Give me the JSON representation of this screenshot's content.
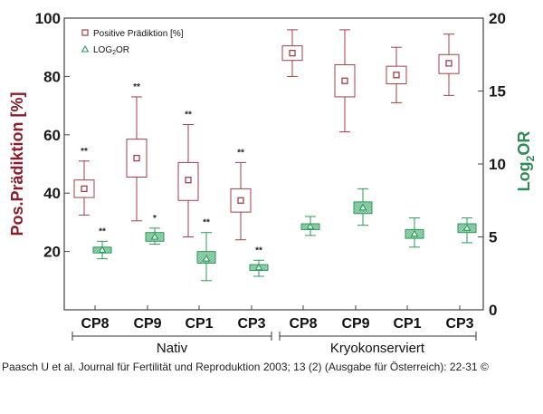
{
  "chart_data": {
    "type": "boxplot",
    "groups": [
      {
        "name": "Nativ",
        "categories": [
          "CP8",
          "CP9",
          "CP1",
          "CP3"
        ]
      },
      {
        "name": "Kryokonserviert",
        "categories": [
          "CP8",
          "CP9",
          "CP1",
          "CP3"
        ]
      }
    ],
    "y_left": {
      "label_main": "Pos.Prädiktion [%]",
      "ylim": [
        0,
        100
      ],
      "ticks": [
        20,
        40,
        60,
        80,
        100
      ]
    },
    "y_right": {
      "label_prefix": "Log",
      "label_sub": "2",
      "label_suffix": "OR",
      "ylim": [
        0,
        20
      ],
      "ticks": [
        0,
        5,
        10,
        15,
        20
      ]
    },
    "series": [
      {
        "name": "Positive Prädiktion [%]",
        "axis": "left",
        "color": "#a0404a",
        "marker": "square",
        "boxes": [
          {
            "category": "CP8",
            "group": "Nativ",
            "min": 32.5,
            "q1": 38.5,
            "median": 41.5,
            "q3": 44.5,
            "max": 51.0,
            "annotation": "**"
          },
          {
            "category": "CP9",
            "group": "Nativ",
            "min": 30.5,
            "q1": 45.5,
            "median": 52.0,
            "q3": 58.5,
            "max": 73.0,
            "annotation": "**"
          },
          {
            "category": "CP1",
            "group": "Nativ",
            "min": 25.0,
            "q1": 37.5,
            "median": 44.5,
            "q3": 50.5,
            "max": 63.5,
            "annotation": "**"
          },
          {
            "category": "CP3",
            "group": "Nativ",
            "min": 24.0,
            "q1": 33.5,
            "median": 37.5,
            "q3": 41.5,
            "max": 50.5,
            "annotation": "**"
          },
          {
            "category": "CP8",
            "group": "Kryokonserviert",
            "min": 80.0,
            "q1": 85.5,
            "median": 88.0,
            "q3": 90.5,
            "max": 96.0,
            "annotation": ""
          },
          {
            "category": "CP9",
            "group": "Kryokonserviert",
            "min": 61.0,
            "q1": 73.0,
            "median": 78.5,
            "q3": 84.0,
            "max": 96.0,
            "annotation": ""
          },
          {
            "category": "CP1",
            "group": "Kryokonserviert",
            "min": 71.0,
            "q1": 77.5,
            "median": 80.5,
            "q3": 83.5,
            "max": 90.0,
            "annotation": ""
          },
          {
            "category": "CP3",
            "group": "Kryokonserviert",
            "min": 73.5,
            "q1": 81.0,
            "median": 84.5,
            "q3": 87.5,
            "max": 94.5,
            "annotation": ""
          }
        ]
      },
      {
        "name": "LOG2OR",
        "legend_prefix": "LOG",
        "legend_sub": "2",
        "legend_suffix": "OR",
        "axis": "right",
        "color": "#2e9a5e",
        "marker": "triangle",
        "boxes": [
          {
            "category": "CP8",
            "group": "Nativ",
            "min": 3.5,
            "q1": 3.9,
            "median": 4.1,
            "q3": 4.3,
            "max": 4.7,
            "annotation": "**"
          },
          {
            "category": "CP9",
            "group": "Nativ",
            "min": 4.5,
            "q1": 4.7,
            "median": 5.0,
            "q3": 5.3,
            "max": 5.6,
            "annotation": "*"
          },
          {
            "category": "CP1",
            "group": "Nativ",
            "min": 2.0,
            "q1": 3.2,
            "median": 3.5,
            "q3": 4.0,
            "max": 5.3,
            "annotation": "**"
          },
          {
            "category": "CP3",
            "group": "Nativ",
            "min": 2.3,
            "q1": 2.7,
            "median": 2.9,
            "q3": 3.1,
            "max": 3.4,
            "annotation": "**"
          },
          {
            "category": "CP8",
            "group": "Kryokonserviert",
            "min": 5.1,
            "q1": 5.5,
            "median": 5.7,
            "q3": 5.9,
            "max": 6.4,
            "annotation": ""
          },
          {
            "category": "CP9",
            "group": "Kryokonserviert",
            "min": 5.8,
            "q1": 6.6,
            "median": 7.0,
            "q3": 7.4,
            "max": 8.3,
            "annotation": ""
          },
          {
            "category": "CP1",
            "group": "Kryokonserviert",
            "min": 4.3,
            "q1": 4.9,
            "median": 5.2,
            "q3": 5.5,
            "max": 6.3,
            "annotation": ""
          },
          {
            "category": "CP3",
            "group": "Kryokonserviert",
            "min": 4.6,
            "q1": 5.3,
            "median": 5.6,
            "q3": 5.9,
            "max": 6.3,
            "annotation": ""
          }
        ]
      }
    ]
  },
  "caption": "Paasch U et al. Journal für Fertilität und Reproduktion 2003; 13 (2) (Ausgabe für Österreich): 22-31 ©"
}
